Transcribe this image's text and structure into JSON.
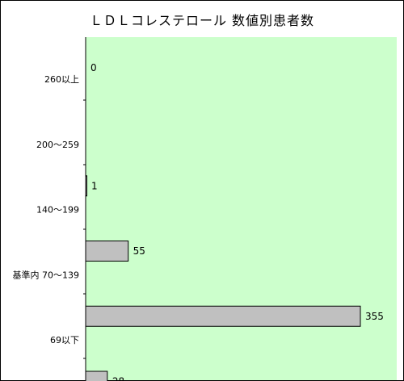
{
  "chart_data": {
    "type": "bar",
    "orientation": "horizontal",
    "title": "ＬＤＬコレステロール 数値別患者数",
    "categories": [
      "260以上",
      "200～259",
      "140～199",
      "基準内 70～139",
      "69以下"
    ],
    "values": [
      0,
      1,
      55,
      355,
      28
    ],
    "xlim": [
      0,
      370
    ],
    "grid": false,
    "legend": "none",
    "colors": {
      "plot_background": "#ccffcc",
      "bar_fill": "#c0c0c0",
      "bar_stroke": "#000000"
    }
  }
}
